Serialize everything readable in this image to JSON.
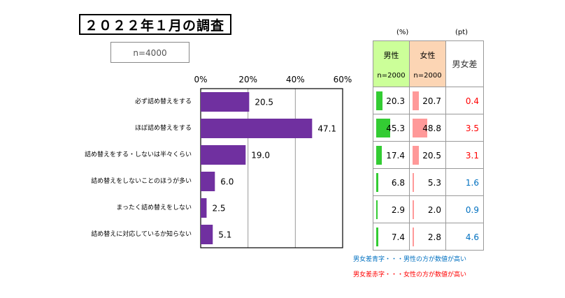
{
  "title": "２０２２年１月の調査",
  "sample": "n=4000",
  "chart_data": {
    "type": "bar",
    "orientation": "horizontal",
    "categories": [
      "必ず詰め替えをする",
      "ほぼ詰め替えをする",
      "詰め替えをする・しないは半々くらい",
      "詰め替えをしないことのほうが多い",
      "まったく詰め替えをしない",
      "詰め替えに対応しているか知らない"
    ],
    "values": [
      20.5,
      47.1,
      19.0,
      6.0,
      2.5,
      5.1
    ],
    "value_labels": [
      "20.5",
      "47.1",
      "19.0",
      "6.0",
      "2.5",
      "5.1"
    ],
    "xlim": [
      0,
      60
    ],
    "ticks": [
      "0%",
      "20%",
      "40%",
      "60%"
    ],
    "tick_values": [
      0,
      20,
      40,
      60
    ],
    "grid": true,
    "bar_color": "#7030A0"
  },
  "side_table": {
    "unit_pct": "(%)",
    "unit_pt": "(pt)",
    "male_label": "男性",
    "female_label": "女性",
    "diff_label": "男女差",
    "male_n": "n=2000",
    "female_n": "n=2000",
    "male_values": [
      20.3,
      45.3,
      17.4,
      6.8,
      2.9,
      7.4
    ],
    "male_labels": [
      "20.3",
      "45.3",
      "17.4",
      "6.8",
      "2.9",
      "7.4"
    ],
    "female_values": [
      20.7,
      48.8,
      20.5,
      5.3,
      2.0,
      2.8
    ],
    "female_labels": [
      "20.7",
      "48.8",
      "20.5",
      "5.3",
      "2.0",
      "2.8"
    ],
    "diff_labels": [
      "0.4",
      "3.5",
      "3.1",
      "1.6",
      "0.9",
      "4.6"
    ],
    "diff_colors": [
      "#FF0000",
      "#FF0000",
      "#FF0000",
      "#0070C0",
      "#0070C0",
      "#0070C0"
    ],
    "male_header_color": "#CCFF99",
    "female_header_color": "#FCD5B4",
    "male_bar_color": "#33CC33",
    "female_bar_color": "#FF9999"
  },
  "notes": {
    "blue": "男女差青字・・・男性の方が数値が高い",
    "red": "男女差赤字・・・女性の方が数値が高い",
    "blue_color": "#0070C0",
    "red_color": "#FF0000"
  }
}
